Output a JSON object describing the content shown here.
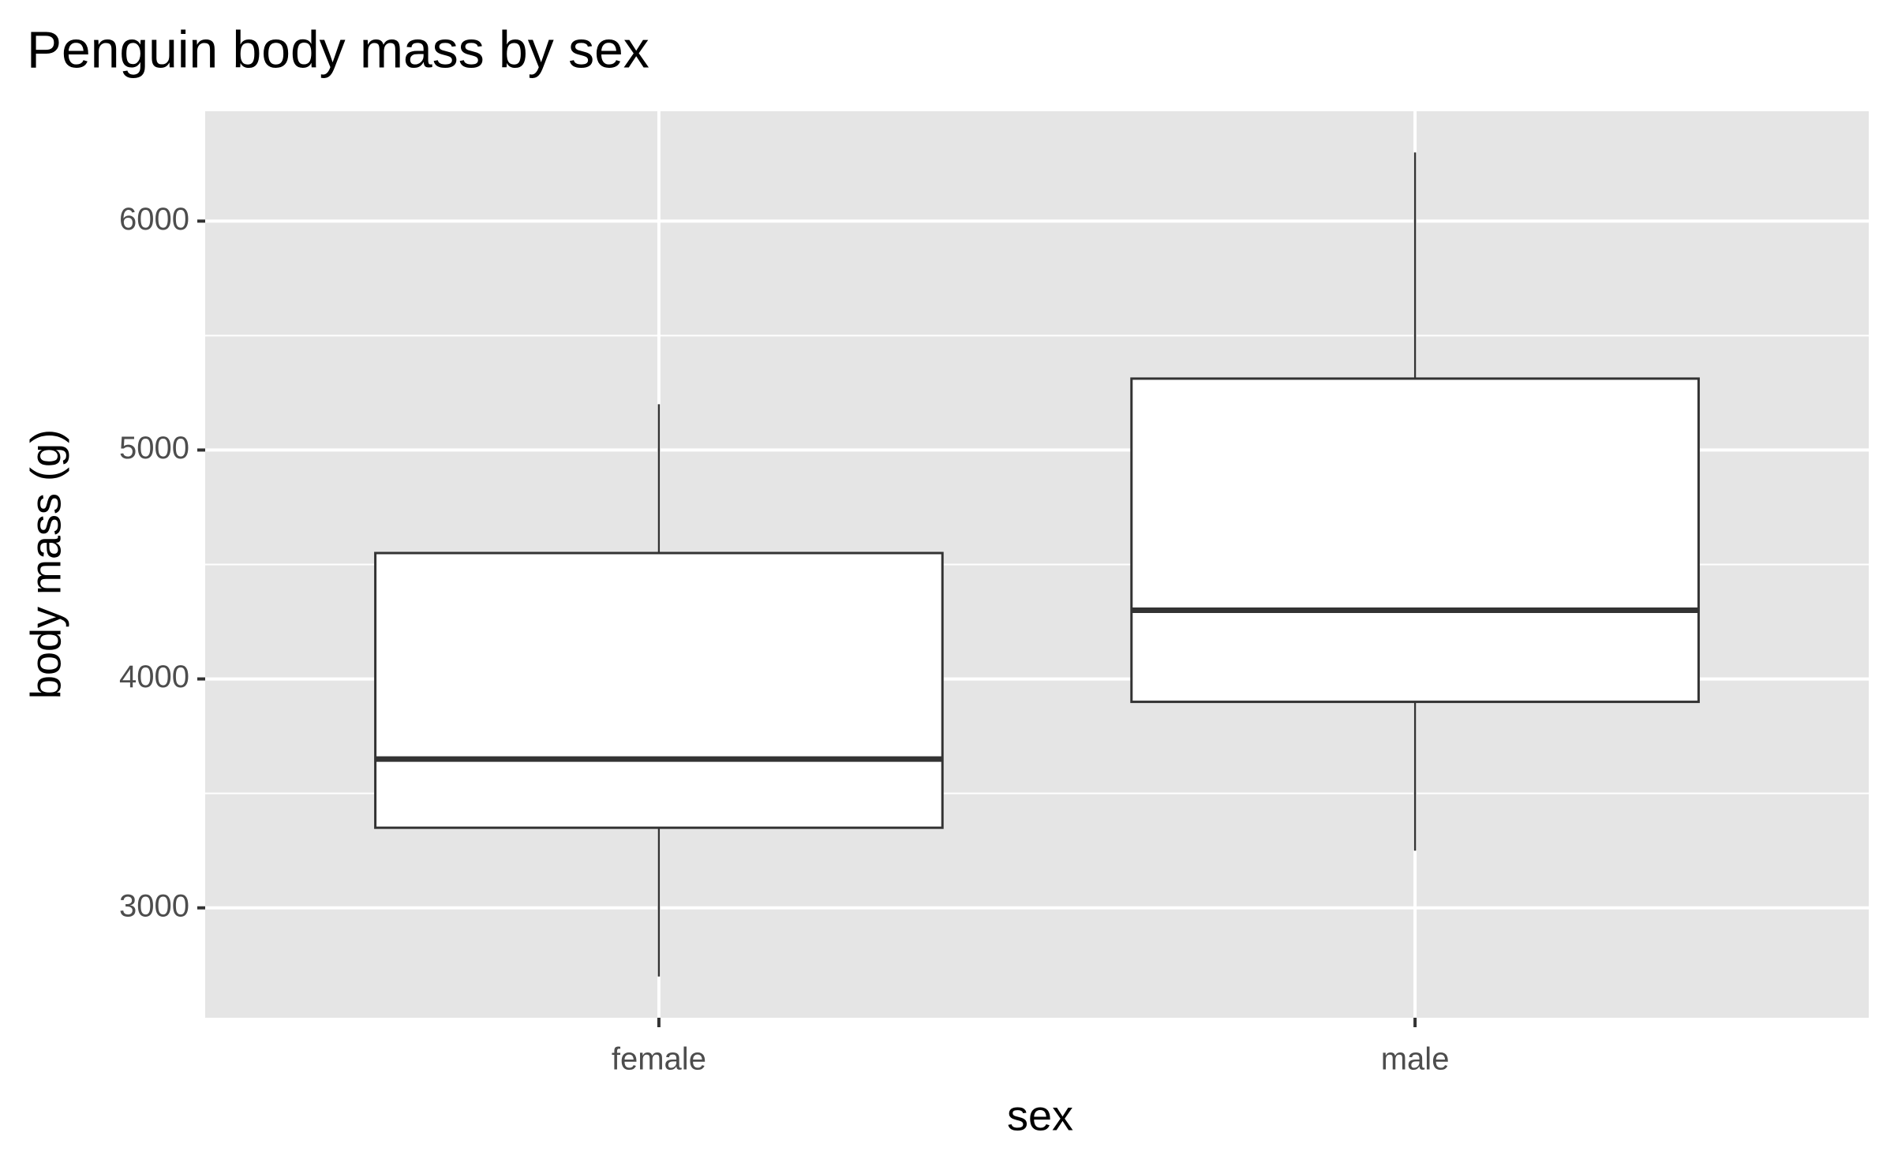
{
  "chart_data": {
    "type": "box",
    "title": "Penguin body mass by sex",
    "x_label": "sex",
    "y_label": "body mass (g)",
    "categories": [
      "female",
      "male"
    ],
    "min": [
      2700,
      3250
    ],
    "q1": [
      3350,
      3900
    ],
    "median": [
      3650,
      4300
    ],
    "q3": [
      4550,
      5312
    ],
    "max": [
      5200,
      6300
    ],
    "ylim": [
      2520,
      6480
    ],
    "yticks": [
      3000,
      4000,
      5000,
      6000
    ],
    "minor_yticks": [
      3500,
      4500,
      5500
    ],
    "grid": true,
    "panel_color": "#e5e5e5",
    "box_fill": "#ffffff",
    "box_stroke": "#333333"
  }
}
